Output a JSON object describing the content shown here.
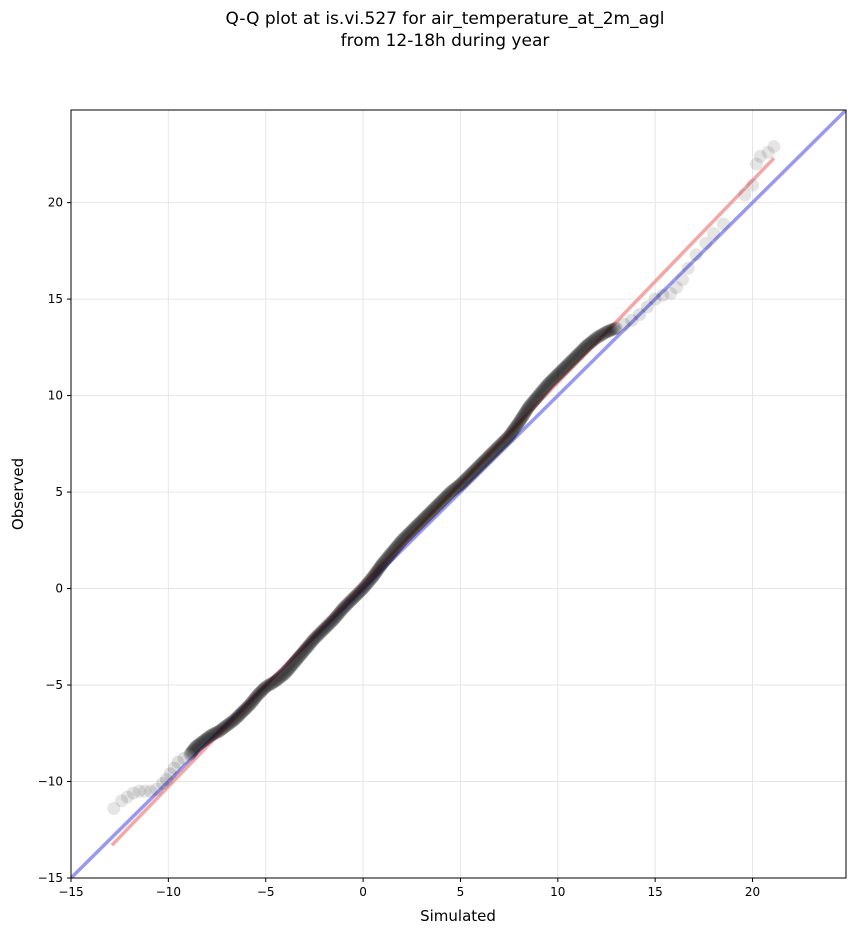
{
  "chart_data": {
    "type": "scatter",
    "title_line1": "Q-Q plot at is.vi.527 for air_temperature_at_2m_agl",
    "title_line2": "from 12-18h during year",
    "xlabel": "Simulated",
    "ylabel": "Observed",
    "xlim": [
      -15,
      24.8
    ],
    "ylim": [
      -15,
      24.8
    ],
    "xticks": [
      -15,
      -10,
      -5,
      0,
      5,
      10,
      15,
      20
    ],
    "yticks": [
      -15,
      -10,
      -5,
      0,
      5,
      10,
      15,
      20
    ],
    "xtick_labels": [
      "−15",
      "−10",
      "−5",
      "0",
      "5",
      "10",
      "15",
      "20"
    ],
    "ytick_labels": [
      "−15",
      "−10",
      "−5",
      "0",
      "5",
      "10",
      "15",
      "20"
    ],
    "grid": true,
    "colors": {
      "points": "#000000",
      "identity_line": "#7777ee",
      "fit_line": "#f08a8a"
    },
    "identity_line": {
      "x": [
        -15,
        24.8
      ],
      "y": [
        -15,
        24.8
      ]
    },
    "fit_line": {
      "x": [
        -12.9,
        21.1
      ],
      "y": [
        -13.3,
        22.3
      ]
    },
    "series": [
      {
        "points": [
          [
            -12.8,
            -11.4
          ],
          [
            -12.4,
            -11.0
          ],
          [
            -12.1,
            -10.8
          ],
          [
            -11.8,
            -10.6
          ],
          [
            -11.5,
            -10.5
          ],
          [
            -11.2,
            -10.5
          ],
          [
            -10.9,
            -10.5
          ],
          [
            -10.6,
            -10.4
          ],
          [
            -10.3,
            -10.1
          ],
          [
            -10.1,
            -9.9
          ],
          [
            -9.9,
            -9.6
          ],
          [
            -9.7,
            -9.3
          ],
          [
            -9.5,
            -9.0
          ],
          [
            -9.2,
            -8.8
          ],
          [
            -8.9,
            -8.6
          ],
          [
            -8.6,
            -8.2
          ],
          [
            -8.2,
            -7.9
          ],
          [
            -7.8,
            -7.6
          ],
          [
            -7.4,
            -7.4
          ],
          [
            -7.0,
            -7.1
          ],
          [
            -6.6,
            -6.8
          ],
          [
            -6.2,
            -6.4
          ],
          [
            -5.8,
            -6.0
          ],
          [
            -5.4,
            -5.5
          ],
          [
            -5.0,
            -5.1
          ],
          [
            -4.5,
            -4.8
          ],
          [
            -4.0,
            -4.4
          ],
          [
            -3.5,
            -3.8
          ],
          [
            -3.0,
            -3.2
          ],
          [
            -2.5,
            -2.6
          ],
          [
            -2.0,
            -2.1
          ],
          [
            -1.5,
            -1.6
          ],
          [
            -1.0,
            -1.0
          ],
          [
            -0.5,
            -0.5
          ],
          [
            0.0,
            0.0
          ],
          [
            0.5,
            0.6
          ],
          [
            1.0,
            1.3
          ],
          [
            1.5,
            1.9
          ],
          [
            2.0,
            2.5
          ],
          [
            2.5,
            3.0
          ],
          [
            3.0,
            3.5
          ],
          [
            3.5,
            4.0
          ],
          [
            4.0,
            4.5
          ],
          [
            4.5,
            5.0
          ],
          [
            5.0,
            5.4
          ],
          [
            5.5,
            5.9
          ],
          [
            6.0,
            6.4
          ],
          [
            6.5,
            6.9
          ],
          [
            7.0,
            7.4
          ],
          [
            7.5,
            7.9
          ],
          [
            8.0,
            8.6
          ],
          [
            8.5,
            9.4
          ],
          [
            9.0,
            10.0
          ],
          [
            9.5,
            10.6
          ],
          [
            10.0,
            11.1
          ],
          [
            10.5,
            11.6
          ],
          [
            11.0,
            12.1
          ],
          [
            11.5,
            12.6
          ],
          [
            12.0,
            13.0
          ],
          [
            12.5,
            13.3
          ],
          [
            13.0,
            13.5
          ],
          [
            13.4,
            13.7
          ],
          [
            13.8,
            13.9
          ],
          [
            14.2,
            14.2
          ],
          [
            14.6,
            14.6
          ],
          [
            15.0,
            15.0
          ],
          [
            15.4,
            15.2
          ],
          [
            15.8,
            15.3
          ],
          [
            16.1,
            15.6
          ],
          [
            16.4,
            16.0
          ],
          [
            16.7,
            16.6
          ],
          [
            17.1,
            17.3
          ],
          [
            17.6,
            17.9
          ],
          [
            18.0,
            18.4
          ],
          [
            18.5,
            18.9
          ],
          [
            19.6,
            20.4
          ],
          [
            20.0,
            20.9
          ],
          [
            20.2,
            22.0
          ],
          [
            20.4,
            22.4
          ],
          [
            20.8,
            22.6
          ],
          [
            21.1,
            22.9
          ]
        ]
      }
    ]
  }
}
